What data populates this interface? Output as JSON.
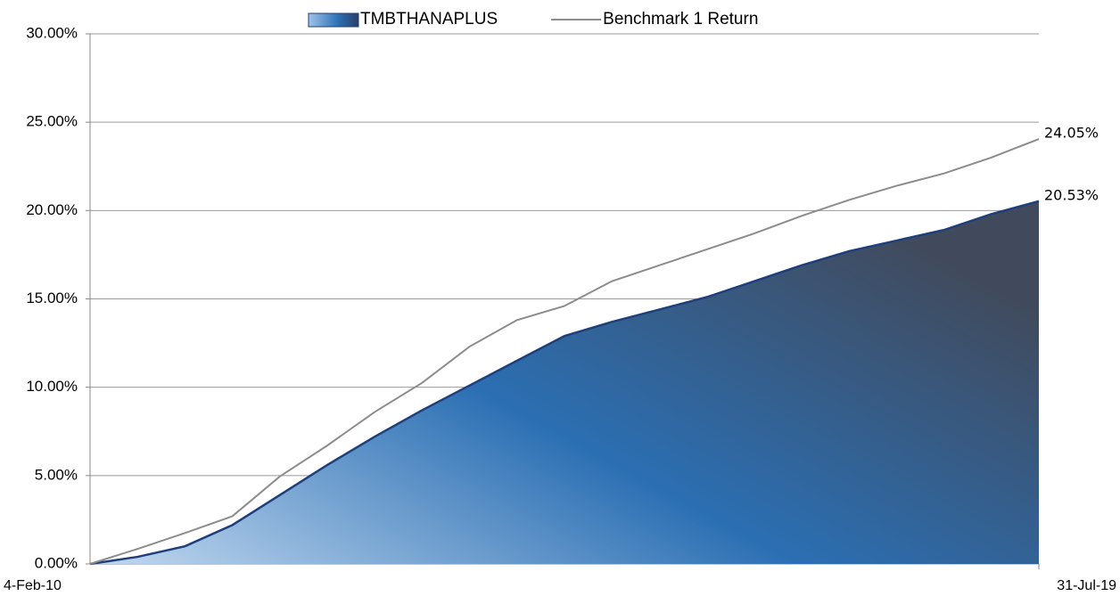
{
  "chart_data": {
    "type": "area",
    "categories": [
      "4-Feb-10",
      null,
      null,
      null,
      null,
      null,
      null,
      null,
      null,
      null,
      null,
      null,
      null,
      null,
      null,
      null,
      null,
      null,
      null,
      null,
      "31-Jul-19"
    ],
    "series": [
      {
        "name": "TMBTHANAPLUS",
        "type": "area",
        "color": "#1f3f7a",
        "values": [
          0,
          0.4,
          1.0,
          2.2,
          3.9,
          5.6,
          7.2,
          8.7,
          10.1,
          11.5,
          12.9,
          13.7,
          14.4,
          15.1,
          16.0,
          16.9,
          17.7,
          18.3,
          18.9,
          19.8,
          20.53
        ],
        "value_labels": [
          null,
          null,
          null,
          null,
          null,
          null,
          null,
          null,
          null,
          null,
          null,
          null,
          null,
          null,
          null,
          null,
          null,
          null,
          null,
          null,
          "20.53%"
        ]
      },
      {
        "name": "Benchmark 1 Return",
        "type": "line",
        "color": "#8c8c8c",
        "values": [
          0,
          0.85,
          1.75,
          2.7,
          4.95,
          6.7,
          8.6,
          10.25,
          12.3,
          13.8,
          14.6,
          16.0,
          16.9,
          17.8,
          18.7,
          19.7,
          20.6,
          21.4,
          22.1,
          23.0,
          24.05
        ],
        "value_labels": [
          null,
          null,
          null,
          null,
          null,
          null,
          null,
          null,
          null,
          null,
          null,
          null,
          null,
          null,
          null,
          null,
          null,
          null,
          null,
          null,
          "24.05%"
        ]
      }
    ],
    "ylim": [
      0,
      30
    ],
    "yticks": [
      {
        "value": 0,
        "label": "0.00%"
      },
      {
        "value": 5,
        "label": "5.00%"
      },
      {
        "value": 10,
        "label": "10.00%"
      },
      {
        "value": 15,
        "label": "15.00%"
      },
      {
        "value": 20,
        "label": "20.00%"
      },
      {
        "value": 25,
        "label": "25.00%"
      },
      {
        "value": 30,
        "label": "30.00%"
      }
    ],
    "grid": true,
    "legend": "top"
  }
}
